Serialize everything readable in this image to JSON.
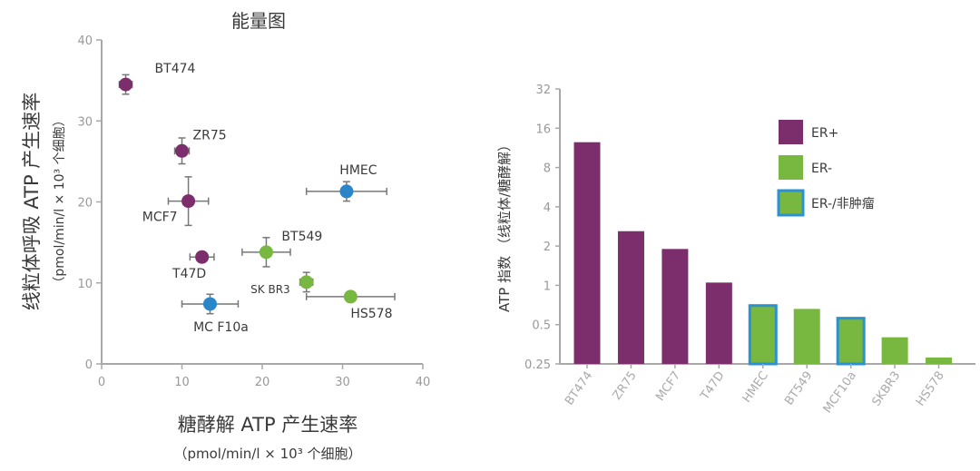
{
  "colors": {
    "er_pos": "#7b2d6c",
    "er_neg": "#79b840",
    "er_neg_normal_border": "#2a92d2",
    "normal": "#2a86c8",
    "axis": "#a8a8a8",
    "text": "#3a3a3a",
    "tick": "#999999"
  },
  "chart_data": [
    {
      "type": "scatter",
      "title": "能量图",
      "xlabel": "糖酵解 ATP 产生速率",
      "xlabel_units": "（pmol/min/l × 10³ 个细胞）",
      "ylabel": "线粒体呼吸 ATP 产生速率",
      "ylabel_units": "（pmol/min/l × 10³ 个细胞）",
      "xlim": [
        0,
        40
      ],
      "ylim": [
        0,
        40
      ],
      "xticks": [
        0,
        10,
        20,
        30,
        40
      ],
      "yticks": [
        0,
        10,
        20,
        30,
        40
      ],
      "points": [
        {
          "label": "BT474",
          "x": 3,
          "y": 34.5,
          "xerr": 0.8,
          "yerr": 1.2,
          "group": "er_pos"
        },
        {
          "label": "ZR75",
          "x": 10,
          "y": 26.3,
          "xerr": 0.9,
          "yerr": 1.6,
          "group": "er_pos"
        },
        {
          "label": "MCF7",
          "x": 10.8,
          "y": 20.1,
          "xerr": 2.5,
          "yerr": 3.0,
          "group": "er_pos"
        },
        {
          "label": "T47D",
          "x": 12.5,
          "y": 13.2,
          "xerr": 1.5,
          "yerr": 0.6,
          "group": "er_pos"
        },
        {
          "label": "HMEC",
          "x": 30.5,
          "y": 21.3,
          "xerr": 5.0,
          "yerr": 1.2,
          "group": "normal"
        },
        {
          "label": "BT549",
          "x": 20.5,
          "y": 13.8,
          "xerr": 3.0,
          "yerr": 1.8,
          "group": "er_neg"
        },
        {
          "label": "SK BR3",
          "x": 25.5,
          "y": 10.1,
          "xerr": 0.8,
          "yerr": 1.2,
          "group": "er_neg"
        },
        {
          "label": "HS578",
          "x": 31,
          "y": 8.3,
          "xerr": 5.5,
          "yerr": 0.4,
          "group": "er_neg"
        },
        {
          "label": "MC F10a",
          "x": 13.5,
          "y": 7.4,
          "xerr": 3.5,
          "yerr": 1.2,
          "group": "normal"
        }
      ]
    },
    {
      "type": "bar",
      "yscale": "log2",
      "ylabel": "ATP 指数 （线粒体/糖酵解）",
      "ylim": [
        0.25,
        32
      ],
      "yticks": [
        "32",
        "16",
        "8",
        "4",
        "2",
        "1",
        "0.5",
        "0.25"
      ],
      "categories": [
        "BT474",
        "ZR75",
        "MCF7",
        "T47D",
        "HMEC",
        "BT549",
        "MCF10a",
        "SKBR3",
        "HS578"
      ],
      "values": [
        12.5,
        2.6,
        1.9,
        1.05,
        0.7,
        0.66,
        0.56,
        0.4,
        0.28
      ],
      "groups": [
        "er_pos",
        "er_pos",
        "er_pos",
        "er_pos",
        "er_neg_normal",
        "er_neg",
        "er_neg_normal",
        "er_neg",
        "er_neg"
      ],
      "legend": [
        {
          "key": "er_pos",
          "label": "ER+"
        },
        {
          "key": "er_neg",
          "label": "ER-"
        },
        {
          "key": "er_neg_normal",
          "label": "ER-/非肿瘤"
        }
      ],
      "legend_position": "top-right"
    }
  ]
}
